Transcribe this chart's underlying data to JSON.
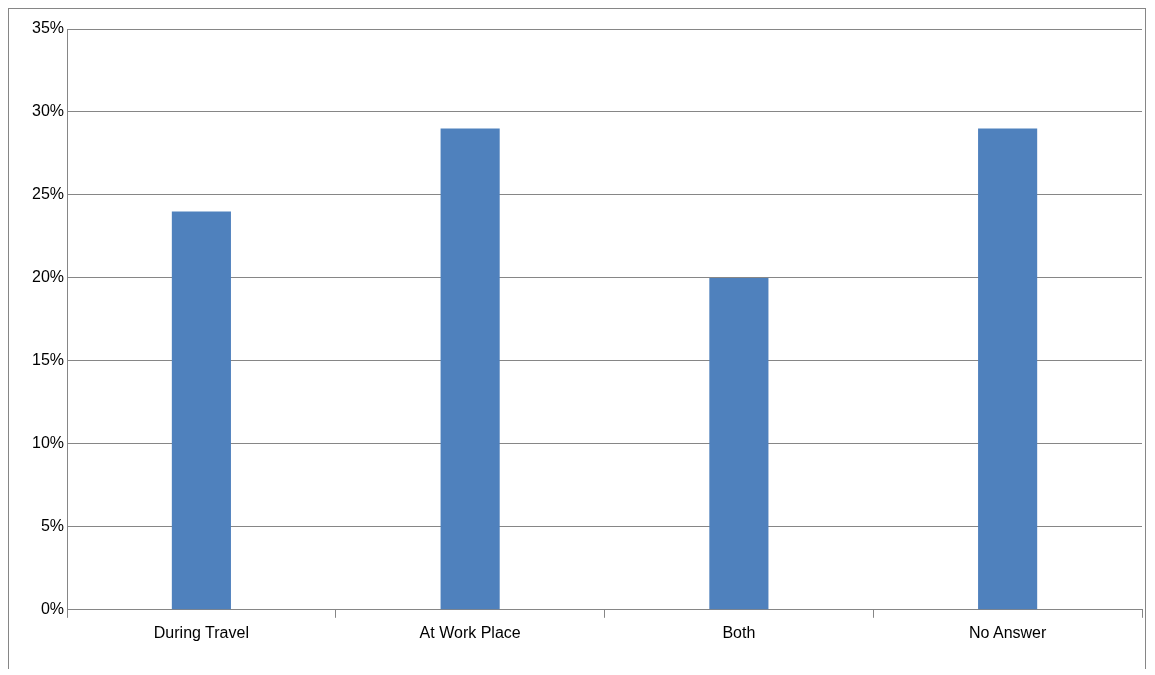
{
  "chart_data": {
    "type": "bar",
    "categories": [
      "During Travel",
      "At Work Place",
      "Both",
      "No Answer"
    ],
    "values": [
      24,
      29,
      20,
      29
    ],
    "color": "#4f81bd",
    "ylim": [
      0,
      35
    ],
    "yticks": [
      {
        "value": 0,
        "label": "0%"
      },
      {
        "value": 5,
        "label": "5%"
      },
      {
        "value": 10,
        "label": "10%"
      },
      {
        "value": 15,
        "label": "15%"
      },
      {
        "value": 20,
        "label": "20%"
      },
      {
        "value": 25,
        "label": "25%"
      },
      {
        "value": 30,
        "label": "30%"
      },
      {
        "value": 35,
        "label": "35%"
      }
    ],
    "grid": "y",
    "legend": false
  }
}
